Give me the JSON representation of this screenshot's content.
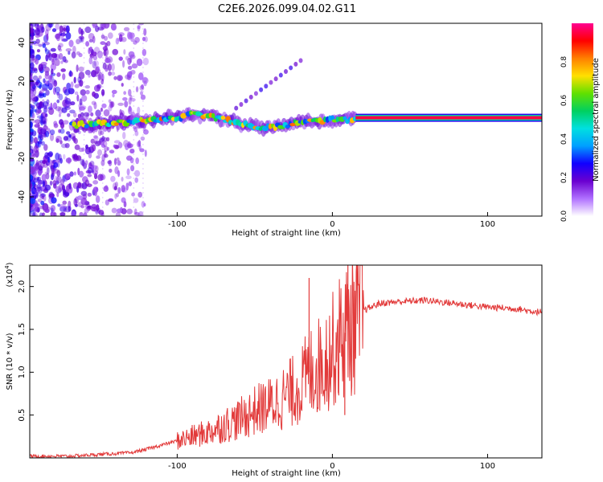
{
  "title": "C2E6.2026.099.04.02.G11",
  "chart_data": [
    {
      "type": "heatmap",
      "name": "spectrogram",
      "xlabel": "Height of straight line (km)",
      "ylabel": "Frequency (Hz)",
      "xlim": [
        -195,
        135
      ],
      "ylim": [
        -50,
        50
      ],
      "x_ticks": [
        -100,
        0,
        100
      ],
      "y_ticks": [
        -40,
        -20,
        0,
        20,
        40
      ],
      "colorbar": {
        "label": "Normalized spectral amplitude",
        "range": [
          0,
          1
        ],
        "ticks": [
          "0.0",
          "0.2",
          "0.4",
          "0.6",
          "0.8"
        ],
        "colormap": [
          "#ffffff",
          "#b070ff",
          "#6a00d0",
          "#1000ff",
          "#00a0ff",
          "#00e0e0",
          "#00d060",
          "#60e000",
          "#ffe000",
          "#ff8000",
          "#ff0000",
          "#ff0090"
        ]
      },
      "ridge": {
        "description": "Spectral ridge near 0 Hz",
        "x": [
          -168,
          -150,
          -130,
          -115,
          -100,
          -90,
          -80,
          -70,
          -60,
          -50,
          -40,
          -30,
          -20,
          -10,
          0,
          10,
          15,
          135
        ],
        "y": [
          -3,
          -2,
          -1,
          0,
          1,
          3,
          2,
          0,
          -2,
          -4,
          -4,
          -3,
          -1,
          -1,
          0,
          0,
          1,
          1
        ]
      }
    },
    {
      "type": "line",
      "name": "snr",
      "xlabel": "Height of straight line (km)",
      "ylabel": "SNR (10 * v/v)",
      "y_multiplier_label": "(x10^4)",
      "multiplier_base": "(x10",
      "multiplier_exp": "4",
      "multiplier_close": ")",
      "xlim": [
        -195,
        135
      ],
      "ylim": [
        0,
        2.25
      ],
      "x_ticks": [
        -100,
        0,
        100
      ],
      "y_ticks": [
        0.5,
        1.0,
        1.5,
        2.0
      ],
      "y_tick_labels": [
        "0.5",
        "1.0",
        "1.5",
        "2.0"
      ],
      "line_color": "#e23a3a",
      "x": [
        -195,
        -170,
        -150,
        -130,
        -120,
        -110,
        -100,
        -90,
        -80,
        -70,
        -60,
        -50,
        -40,
        -30,
        -20,
        -15,
        -10,
        -5,
        0,
        5,
        10,
        15,
        20,
        30,
        40,
        60,
        80,
        100,
        110,
        120,
        125,
        130,
        135
      ],
      "y": [
        0.02,
        0.02,
        0.04,
        0.06,
        0.1,
        0.15,
        0.2,
        0.25,
        0.3,
        0.38,
        0.45,
        0.55,
        0.62,
        0.72,
        0.85,
        1.0,
        1.05,
        1.15,
        1.25,
        1.4,
        1.5,
        1.6,
        1.72,
        1.8,
        1.82,
        1.84,
        1.8,
        1.76,
        1.75,
        1.74,
        1.72,
        1.71,
        1.7
      ],
      "spikes": [
        {
          "x": -15,
          "y": 2.1
        },
        {
          "x": 10,
          "y": 2.3
        },
        {
          "x": 8,
          "y": 0.5
        }
      ]
    }
  ]
}
